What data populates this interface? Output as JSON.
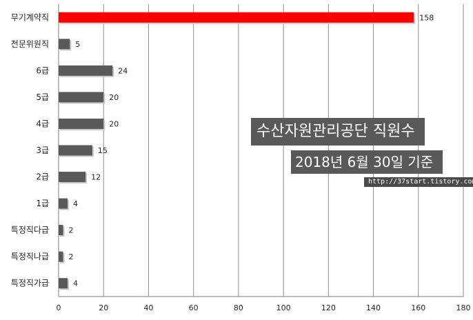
{
  "chart_data": {
    "type": "bar",
    "orientation": "horizontal",
    "categories": [
      "무기계약직",
      "전문위원직",
      "6급",
      "5급",
      "4급",
      "3급",
      "2급",
      "1급",
      "특정직다급",
      "특정직나급",
      "특정직가급"
    ],
    "values": [
      158,
      5,
      24,
      20,
      20,
      15,
      12,
      4,
      2,
      2,
      4
    ],
    "xlim": [
      0,
      180
    ],
    "xticks": [
      "0",
      "20",
      "40",
      "60",
      "80",
      "100",
      "120",
      "140",
      "160",
      "180"
    ],
    "grid": true,
    "highlight_color": "#ff0000",
    "bar_color": "#595959",
    "highlight_index": 0
  },
  "overlay": {
    "title": "수산자원관리공단 직원수",
    "date": "2018년 6월 30일 기준",
    "url": "http://37start.tistory.com"
  }
}
